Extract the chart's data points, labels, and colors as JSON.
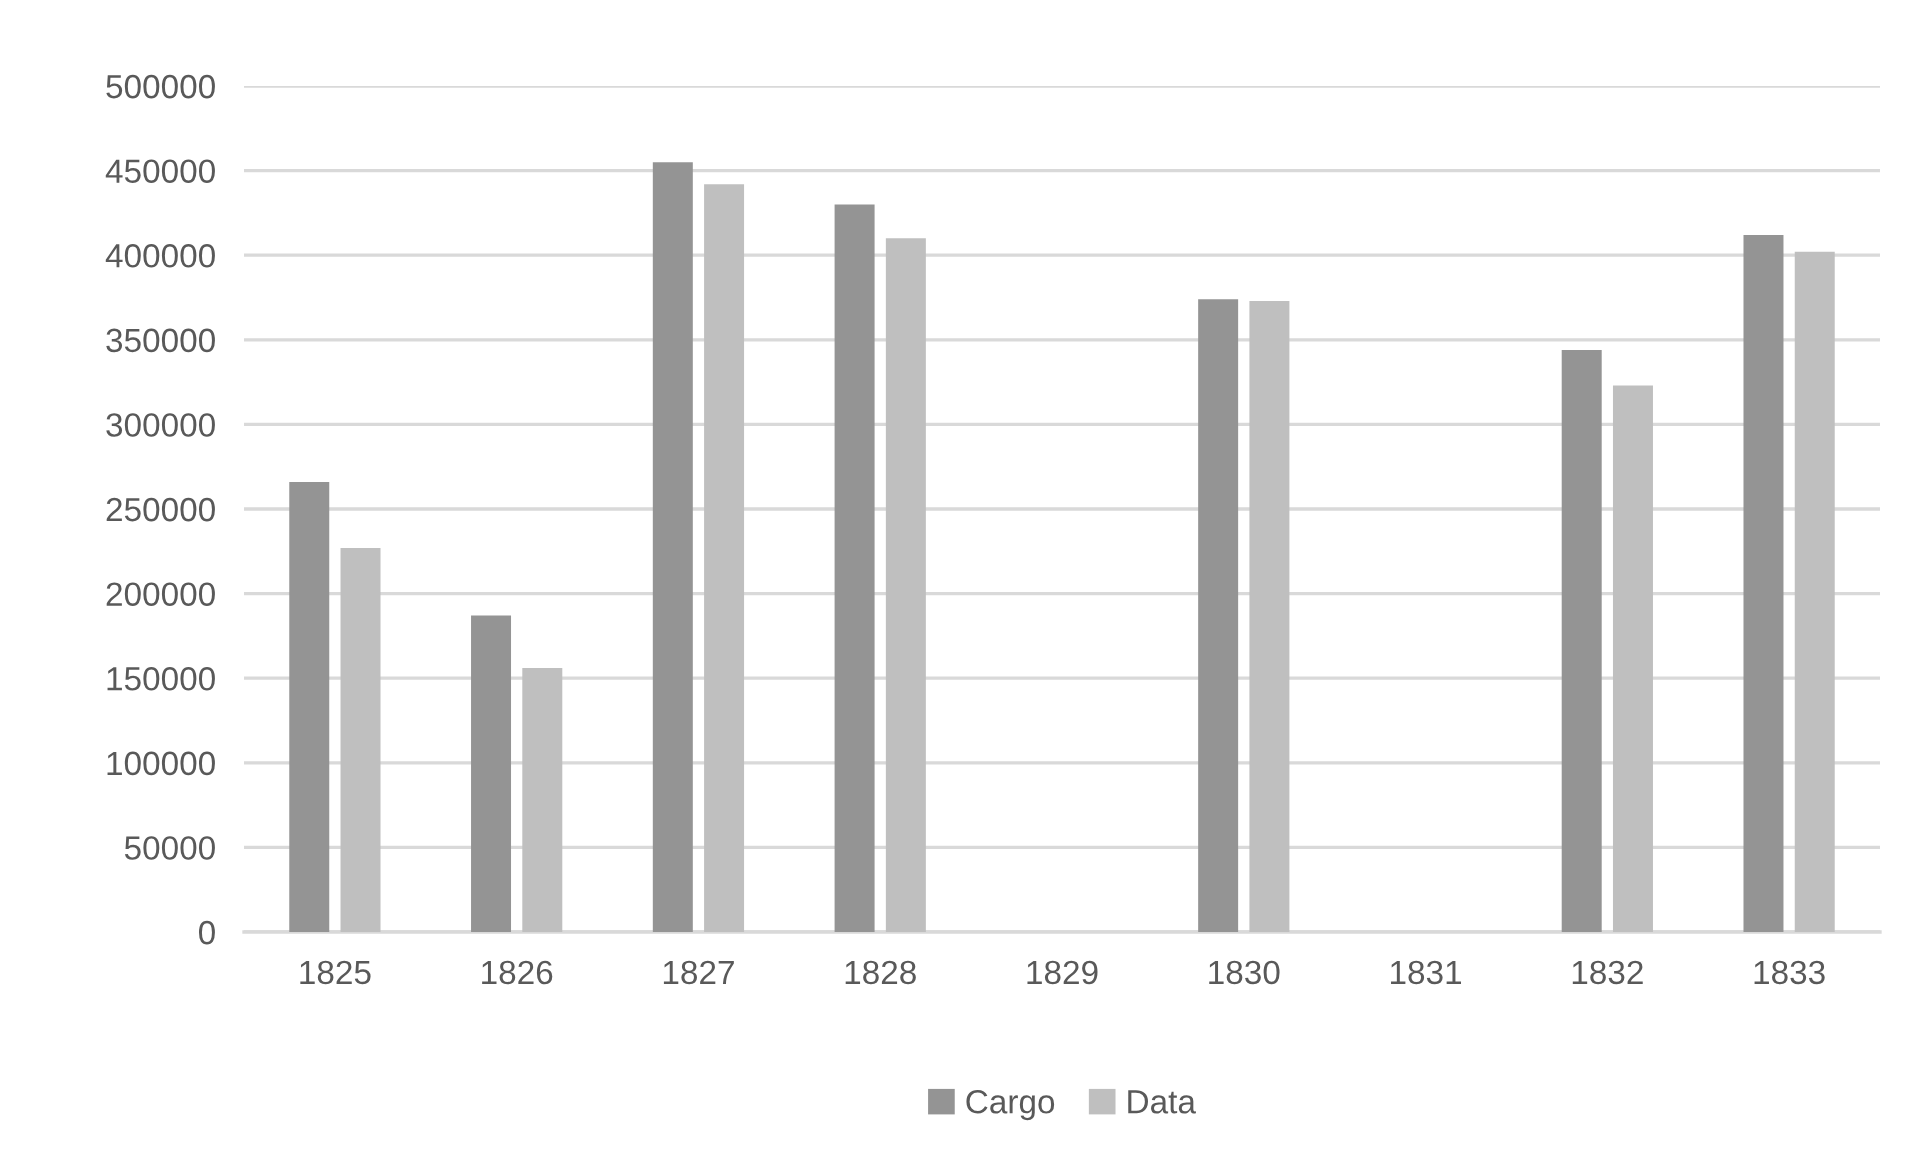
{
  "chart_data": {
    "type": "bar",
    "categories": [
      "1825",
      "1826",
      "1827",
      "1828",
      "1829",
      "1830",
      "1831",
      "1832",
      "1833"
    ],
    "series": [
      {
        "name": "Cargo",
        "color": "#949494",
        "values": [
          266000,
          187000,
          455000,
          430000,
          null,
          374000,
          null,
          344000,
          412000
        ]
      },
      {
        "name": "Data",
        "color": "#bfbfbf",
        "values": [
          227000,
          156000,
          442000,
          410000,
          null,
          373000,
          null,
          323000,
          402000
        ]
      }
    ],
    "ylim": [
      0,
      500000
    ],
    "yticks": [
      0,
      50000,
      100000,
      150000,
      200000,
      250000,
      300000,
      350000,
      400000,
      450000,
      500000
    ],
    "grid": "y",
    "legend": "bottom"
  }
}
